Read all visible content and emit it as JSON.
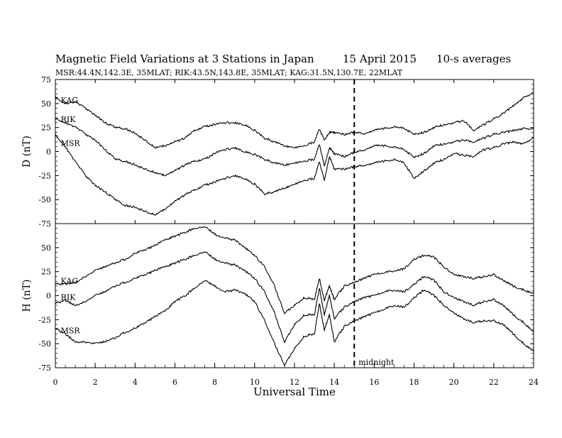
{
  "chart_data": {
    "type": "line",
    "title": "Magnetic Field Variations at 3 Stations in Japan",
    "date": "15  April     2015",
    "averaging": "10-s averages",
    "subtitle": "MSR:44.4N,142.3E, 35MLAT;  RIK:43.5N,143.8E, 35MLAT;  KAG:31.5N,130.7E, 22MLAT",
    "xlabel": "Universal Time",
    "xlim": [
      0,
      24
    ],
    "x_ticks": [
      "0",
      "2",
      "4",
      "6",
      "8",
      "10",
      "12",
      "14",
      "16",
      "18",
      "20",
      "22",
      "24"
    ],
    "midnight_marker": {
      "x": 15,
      "label": "midnight"
    },
    "panels": [
      {
        "ylabel": "D (nT)",
        "ylim": [
          -75,
          75
        ],
        "y_ticks": [
          "75",
          "50",
          "25",
          "0",
          "-25",
          "-50",
          "-75"
        ],
        "series": [
          {
            "name": "KAG",
            "x": [
              0,
              0.5,
              1,
              1.5,
              2,
              2.5,
              3,
              3.5,
              4,
              4.5,
              5,
              5.5,
              6,
              6.5,
              7,
              7.5,
              8,
              8.5,
              9,
              9.5,
              10,
              10.5,
              11,
              11.5,
              12,
              12.5,
              13,
              13.25,
              13.5,
              13.75,
              14,
              14.5,
              15,
              15.5,
              16,
              16.5,
              17,
              17.5,
              18,
              18.5,
              19,
              19.5,
              20,
              20.5,
              21,
              21.5,
              22,
              22.5,
              23,
              23.5,
              24
            ],
            "values": [
              57,
              50,
              52,
              45,
              38,
              30,
              25,
              24,
              19,
              12,
              4,
              6,
              10,
              14,
              22,
              26,
              28,
              30,
              30,
              28,
              22,
              14,
              10,
              6,
              4,
              6,
              10,
              24,
              12,
              20,
              20,
              18,
              20,
              19,
              22,
              24,
              26,
              24,
              18,
              20,
              25,
              28,
              30,
              32,
              22,
              28,
              34,
              40,
              48,
              56,
              62
            ]
          },
          {
            "name": "RIK",
            "x": [
              0,
              0.5,
              1,
              1.5,
              2,
              2.5,
              3,
              3.5,
              4,
              4.5,
              5,
              5.5,
              6,
              6.5,
              7,
              7.5,
              8,
              8.5,
              9,
              9.5,
              10,
              10.5,
              11,
              11.5,
              12,
              12.5,
              13,
              13.25,
              13.5,
              13.75,
              14,
              14.5,
              15,
              15.5,
              16,
              16.5,
              17,
              17.5,
              18,
              18.5,
              19,
              19.5,
              20,
              20.5,
              21,
              21.5,
              22,
              22.5,
              23,
              23.5,
              24
            ],
            "values": [
              35,
              30,
              26,
              18,
              12,
              2,
              -8,
              -10,
              -14,
              -18,
              -22,
              -25,
              -20,
              -14,
              -10,
              -8,
              -2,
              2,
              4,
              0,
              -3,
              -8,
              -12,
              -14,
              -12,
              -10,
              -8,
              8,
              -15,
              4,
              -2,
              -5,
              -1,
              2,
              6,
              6,
              5,
              2,
              -6,
              -2,
              6,
              8,
              10,
              12,
              10,
              14,
              18,
              20,
              22,
              24,
              24
            ]
          },
          {
            "name": "MSR",
            "x": [
              0,
              0.5,
              1,
              1.5,
              2,
              2.5,
              3,
              3.5,
              4,
              4.5,
              5,
              5.5,
              6,
              6.5,
              7,
              7.5,
              8,
              8.5,
              9,
              9.5,
              10,
              10.5,
              11,
              11.5,
              12,
              12.5,
              13,
              13.25,
              13.5,
              13.75,
              14,
              14.5,
              15,
              15.5,
              16,
              16.5,
              17,
              17.5,
              18,
              18.5,
              19,
              19.5,
              20,
              20.5,
              21,
              21.5,
              22,
              22.5,
              23,
              23.5,
              24
            ],
            "values": [
              18,
              5,
              -10,
              -25,
              -35,
              -42,
              -50,
              -56,
              -58,
              -62,
              -66,
              -60,
              -52,
              -45,
              -40,
              -35,
              -32,
              -28,
              -25,
              -28,
              -34,
              -44,
              -42,
              -38,
              -34,
              -30,
              -28,
              -10,
              -30,
              -5,
              -18,
              -18,
              -16,
              -14,
              -12,
              -10,
              -8,
              -12,
              -28,
              -20,
              -12,
              -8,
              -2,
              -4,
              -5,
              2,
              4,
              8,
              10,
              8,
              15
            ]
          }
        ]
      },
      {
        "ylabel": "H (nT)",
        "ylim": [
          -75,
          75
        ],
        "y_ticks": [
          "75",
          "50",
          "25",
          "0",
          "-25",
          "-50",
          "-75"
        ],
        "series": [
          {
            "name": "KAG",
            "x": [
              0,
              0.5,
              1,
              1.5,
              2,
              2.5,
              3,
              3.5,
              4,
              4.5,
              5,
              5.5,
              6,
              6.5,
              7,
              7.5,
              8,
              8.5,
              9,
              9.5,
              10,
              10.5,
              11,
              11.5,
              12,
              12.5,
              13,
              13.25,
              13.5,
              13.75,
              14,
              14.5,
              15,
              15.5,
              16,
              16.5,
              17,
              17.5,
              18,
              18.5,
              19,
              19.5,
              20,
              20.5,
              21,
              21.5,
              22,
              22.5,
              23,
              23.5,
              24
            ],
            "values": [
              12,
              12,
              14,
              20,
              26,
              30,
              34,
              38,
              44,
              48,
              52,
              58,
              62,
              66,
              70,
              72,
              64,
              60,
              58,
              50,
              42,
              30,
              10,
              -18,
              -10,
              -2,
              -4,
              18,
              -5,
              10,
              -4,
              10,
              14,
              18,
              22,
              24,
              26,
              28,
              38,
              42,
              40,
              30,
              22,
              20,
              18,
              20,
              22,
              16,
              10,
              6,
              2
            ]
          },
          {
            "name": "RIK",
            "x": [
              0,
              0.5,
              1,
              1.5,
              2,
              2.5,
              3,
              3.5,
              4,
              4.5,
              5,
              5.5,
              6,
              6.5,
              7,
              7.5,
              8,
              8.5,
              9,
              9.5,
              10,
              10.5,
              11,
              11.5,
              12,
              12.5,
              13,
              13.25,
              13.5,
              13.75,
              14,
              14.5,
              15,
              15.5,
              16,
              16.5,
              17,
              17.5,
              18,
              18.5,
              19,
              19.5,
              20,
              20.5,
              21,
              21.5,
              22,
              22.5,
              23,
              23.5,
              24
            ],
            "values": [
              -8,
              -5,
              -10,
              -6,
              0,
              4,
              10,
              14,
              18,
              22,
              26,
              30,
              34,
              38,
              42,
              46,
              38,
              34,
              32,
              26,
              18,
              4,
              -18,
              -48,
              -30,
              -20,
              -20,
              8,
              -20,
              0,
              -24,
              -12,
              -6,
              -2,
              0,
              4,
              6,
              4,
              12,
              20,
              16,
              4,
              -2,
              -6,
              -10,
              -6,
              -4,
              -10,
              -20,
              -28,
              -38
            ]
          },
          {
            "name": "MSR",
            "x": [
              0,
              0.5,
              1,
              1.5,
              2,
              2.5,
              3,
              3.5,
              4,
              4.5,
              5,
              5.5,
              6,
              6.5,
              7,
              7.5,
              8,
              8.5,
              9,
              9.5,
              10,
              10.5,
              11,
              11.5,
              12,
              12.5,
              13,
              13.25,
              13.5,
              13.75,
              14,
              14.5,
              15,
              15.5,
              16,
              16.5,
              17,
              17.5,
              18,
              18.5,
              19,
              19.5,
              20,
              20.5,
              21,
              21.5,
              22,
              22.5,
              23,
              23.5,
              24
            ],
            "values": [
              -34,
              -40,
              -48,
              -48,
              -50,
              -48,
              -44,
              -38,
              -34,
              -28,
              -22,
              -16,
              -6,
              0,
              8,
              16,
              10,
              4,
              6,
              2,
              -6,
              -26,
              -50,
              -72,
              -55,
              -42,
              -40,
              -8,
              -36,
              -20,
              -48,
              -32,
              -26,
              -22,
              -18,
              -14,
              -10,
              -12,
              -2,
              6,
              0,
              -10,
              -18,
              -24,
              -28,
              -26,
              -26,
              -30,
              -40,
              -50,
              -58
            ]
          }
        ]
      }
    ]
  }
}
